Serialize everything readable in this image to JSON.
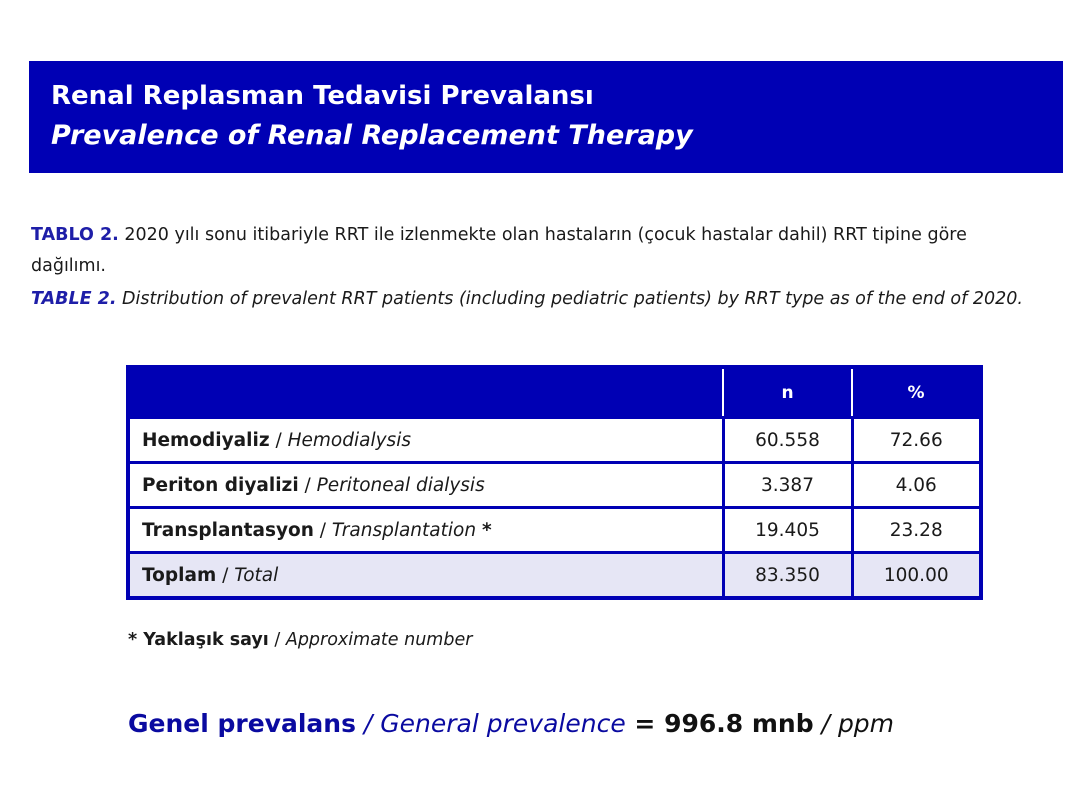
{
  "banner": {
    "title_tr": "Renal Replasman Tedavisi Prevalansı",
    "title_en": "Prevalence of Renal Replacement Therapy"
  },
  "caption_tr": {
    "label": "TABLO 2.",
    "text": " 2020 yılı sonu itibariyle RRT ile izlenmekte olan hastaların (çocuk hastalar dahil) RRT tipine göre dağılımı."
  },
  "caption_en": {
    "label": "TABLE 2.",
    "text": " Distribution of prevalent RRT patients (including pediatric patients) by RRT type as of the end of 2020."
  },
  "table": {
    "headers": [
      "",
      "n",
      "%"
    ],
    "rows": [
      {
        "label_tr": "Hemodiyaliz",
        "label_en": "Hemodialysis",
        "mark": "",
        "n": "60.558",
        "pct": "72.66"
      },
      {
        "label_tr": "Periton diyalizi",
        "label_en": "Peritoneal dialysis",
        "mark": "",
        "n": "3.387",
        "pct": "4.06"
      },
      {
        "label_tr": "Transplantasyon",
        "label_en": "Transplantation",
        "mark": "*",
        "n": "19.405",
        "pct": "23.28"
      },
      {
        "label_tr": "Toplam",
        "label_en": "Total",
        "mark": "",
        "n": "83.350",
        "pct": "100.00"
      }
    ]
  },
  "footnote": {
    "label_tr": "* Yaklaşık sayı",
    "label_en": "Approximate number"
  },
  "prevalence": {
    "label_tr": "Genel prevalans",
    "label_en": "General prevalence",
    "value": "996.8 mnb",
    "unit_en": "ppm"
  },
  "colors": {
    "primary_blue": "#0000b4",
    "total_row_bg": "#e6e6f5"
  }
}
